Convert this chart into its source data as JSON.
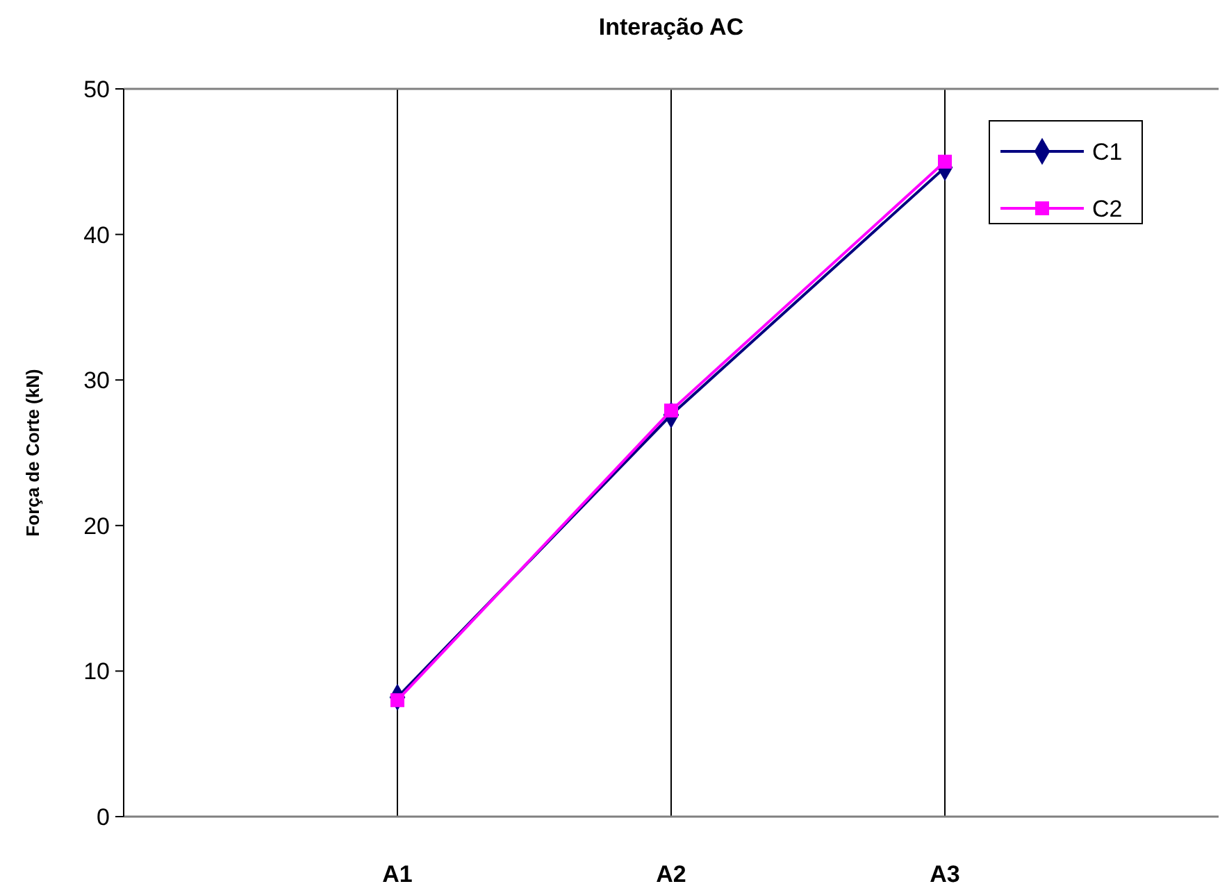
{
  "chart_data": {
    "type": "line",
    "title": "Interação AC",
    "ylabel": "Força de Corte (kN)",
    "categories": [
      null,
      "A1",
      "A2",
      "A3",
      null
    ],
    "series": [
      {
        "name": "C1",
        "color": "#000080",
        "marker": "diamond",
        "values": [
          null,
          8.2,
          27.6,
          44.6,
          null
        ]
      },
      {
        "name": "C2",
        "color": "#ff00ff",
        "marker": "square",
        "values": [
          null,
          8.0,
          27.9,
          45.0,
          null
        ]
      }
    ],
    "ylim": [
      0,
      50
    ],
    "yticks": [
      0,
      10,
      20,
      30,
      40,
      50
    ],
    "grid": "x",
    "legend": "top right"
  }
}
